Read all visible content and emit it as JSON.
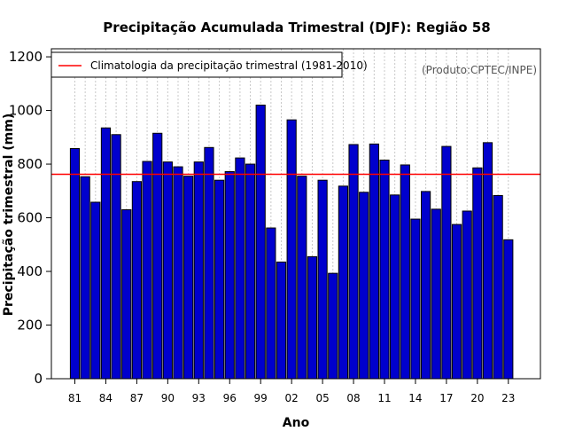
{
  "chart_data": {
    "type": "bar",
    "title": "Precipitação Acumulada Trimestral (DJF): Região 58",
    "xlabel": "Ano",
    "ylabel": "Precipitação trimestral (mm)",
    "source_note": "(Produto:CPTEC/INPE)",
    "ylim": [
      0,
      1230
    ],
    "yticks": [
      0,
      200,
      400,
      600,
      800,
      1000,
      1200
    ],
    "xtick_labels": [
      "81",
      "84",
      "87",
      "90",
      "93",
      "96",
      "99",
      "02",
      "05",
      "08",
      "11",
      "14",
      "17",
      "20",
      "23"
    ],
    "xtick_every": 3,
    "categories": [
      "1981",
      "1982",
      "1983",
      "1984",
      "1985",
      "1986",
      "1987",
      "1988",
      "1989",
      "1990",
      "1991",
      "1992",
      "1993",
      "1994",
      "1995",
      "1996",
      "1997",
      "1998",
      "1999",
      "2000",
      "2001",
      "2002",
      "2003",
      "2004",
      "2005",
      "2006",
      "2007",
      "2008",
      "2009",
      "2010",
      "2011",
      "2012",
      "2013",
      "2014",
      "2015",
      "2016",
      "2017",
      "2018",
      "2019",
      "2020",
      "2021",
      "2022",
      "2023"
    ],
    "values": [
      858,
      753,
      658,
      935,
      910,
      630,
      735,
      810,
      915,
      808,
      790,
      755,
      808,
      862,
      740,
      772,
      823,
      800,
      1020,
      562,
      435,
      965,
      755,
      455,
      740,
      393,
      718,
      873,
      695,
      875,
      815,
      685,
      797,
      595,
      698,
      632,
      866,
      575,
      625,
      786,
      880,
      683,
      518
    ],
    "bar_color": "#0000cd",
    "climatology": {
      "label": "Climatologia da precipitação trimestral (1981-2010)",
      "value": 762,
      "color": "#ff0000"
    },
    "legend_position": "top-left",
    "grid": "vertical-dotted"
  }
}
